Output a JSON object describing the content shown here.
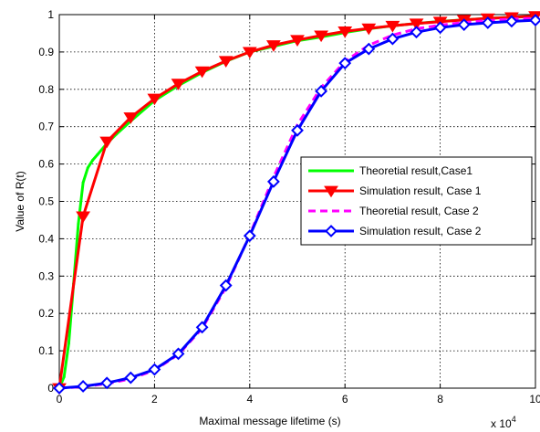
{
  "chart_data": {
    "type": "line",
    "title": "",
    "xlabel": "Maximal message lifetime (s)",
    "ylabel": "Value of R(t)",
    "x_multiplier_label": "x 10",
    "x_multiplier_exponent": "4",
    "xlim": [
      0,
      10
    ],
    "ylim": [
      0,
      1
    ],
    "xticks": [
      0,
      2,
      4,
      6,
      8,
      10
    ],
    "xtick_labels": [
      "0",
      "2",
      "4",
      "6",
      "8",
      "10"
    ],
    "yticks": [
      0,
      0.1,
      0.2,
      0.3,
      0.4,
      0.5,
      0.6,
      0.7,
      0.8,
      0.9,
      1
    ],
    "ytick_labels": [
      "0",
      "0.1",
      "0.2",
      "0.3",
      "0.4",
      "0.5",
      "0.6",
      "0.7",
      "0.8",
      "0.9",
      "1"
    ],
    "grid": true,
    "grid_style": "dotted",
    "legend_position": "right",
    "series": [
      {
        "name": "Theoretial result,Case1",
        "color": "#00ff00",
        "line": "solid",
        "marker": "point",
        "x": [
          0,
          0.1,
          0.2,
          0.3,
          0.4,
          0.5,
          0.6,
          0.7,
          0.8,
          1.0,
          1.2,
          1.5,
          2.0,
          2.5,
          3.0,
          3.5,
          4.0,
          4.5,
          5.0,
          5.5,
          6.0,
          6.5,
          7.0,
          7.5,
          8.0,
          8.5,
          9.0,
          9.5,
          10.0
        ],
        "y": [
          0.0,
          0.03,
          0.12,
          0.28,
          0.44,
          0.55,
          0.59,
          0.61,
          0.625,
          0.655,
          0.68,
          0.715,
          0.77,
          0.81,
          0.845,
          0.875,
          0.9,
          0.915,
          0.93,
          0.94,
          0.952,
          0.962,
          0.97,
          0.976,
          0.982,
          0.986,
          0.99,
          0.993,
          0.995
        ]
      },
      {
        "name": "Simulation result, Case 1",
        "color": "#ff0000",
        "line": "solid",
        "marker": "triangle-down",
        "x": [
          0,
          0.5,
          1.0,
          1.5,
          2.0,
          2.5,
          3.0,
          3.5,
          4.0,
          4.5,
          5.0,
          5.5,
          6.0,
          6.5,
          7.0,
          7.5,
          8.0,
          8.5,
          9.0,
          9.5,
          10.0
        ],
        "y": [
          0.0,
          0.46,
          0.66,
          0.725,
          0.775,
          0.815,
          0.848,
          0.876,
          0.9,
          0.918,
          0.932,
          0.944,
          0.955,
          0.963,
          0.97,
          0.976,
          0.981,
          0.986,
          0.99,
          0.993,
          0.996
        ]
      },
      {
        "name": "Theoretial result, Case 2",
        "color": "#ff00ff",
        "line": "dashed",
        "marker": "none",
        "x": [
          0,
          0.5,
          1.0,
          1.5,
          2.0,
          2.5,
          3.0,
          3.5,
          4.0,
          4.5,
          5.0,
          5.5,
          6.0,
          6.5,
          7.0,
          7.5,
          8.0,
          8.5,
          9.0,
          9.5,
          10.0
        ],
        "y": [
          0.0,
          0.004,
          0.012,
          0.025,
          0.048,
          0.09,
          0.16,
          0.27,
          0.41,
          0.565,
          0.705,
          0.805,
          0.875,
          0.918,
          0.945,
          0.962,
          0.972,
          0.979,
          0.984,
          0.988,
          0.99
        ]
      },
      {
        "name": "Simulation result, Case 2",
        "color": "#0000ff",
        "line": "solid",
        "marker": "diamond",
        "x": [
          0,
          0.5,
          1.0,
          1.5,
          2.0,
          2.5,
          3.0,
          3.5,
          4.0,
          4.5,
          5.0,
          5.5,
          6.0,
          6.5,
          7.0,
          7.5,
          8.0,
          8.5,
          9.0,
          9.5,
          10.0
        ],
        "y": [
          0.0,
          0.005,
          0.014,
          0.028,
          0.05,
          0.092,
          0.163,
          0.275,
          0.408,
          0.553,
          0.69,
          0.795,
          0.87,
          0.908,
          0.935,
          0.953,
          0.965,
          0.973,
          0.978,
          0.982,
          0.985
        ]
      }
    ]
  }
}
